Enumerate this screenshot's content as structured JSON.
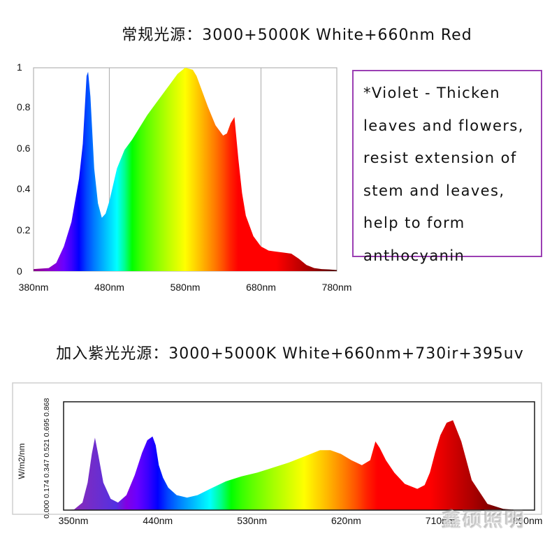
{
  "title_top": "常规光源：3000+5000K White+660nm Red",
  "title_bottom": "加入紫光光源：3000+5000K White+660nm+730ir+395uv",
  "note_lines": [
    "*Violet - Thicken",
    "leaves and flowers,",
    "resist extension of",
    "stem and leaves,",
    "help to form",
    "anthocyanin"
  ],
  "watermark": "鑫硕照明",
  "colors": {
    "note_border": "#9b3fb3",
    "grid": "#b4b4b4"
  },
  "chart_data": [
    {
      "type": "area",
      "title": "常规光源：3000+5000K White+660nm Red",
      "x_ticks": [
        "380nm",
        "480nm",
        "580nm",
        "680nm",
        "780nm"
      ],
      "y_ticks": [
        "0",
        "0.2",
        "0.4",
        "0.6",
        "0.8",
        "1"
      ],
      "xlim": [
        380,
        780
      ],
      "ylim": [
        0,
        1
      ],
      "grid": true,
      "x": [
        380,
        400,
        410,
        420,
        430,
        440,
        445,
        450,
        452,
        455,
        460,
        465,
        470,
        475,
        480,
        490,
        500,
        510,
        520,
        530,
        540,
        550,
        560,
        570,
        580,
        590,
        595,
        600,
        610,
        620,
        630,
        635,
        640,
        645,
        650,
        655,
        660,
        670,
        680,
        690,
        700,
        710,
        720,
        730,
        740,
        750,
        760,
        770,
        780
      ],
      "y": [
        0.01,
        0.015,
        0.04,
        0.12,
        0.24,
        0.45,
        0.62,
        0.95,
        0.97,
        0.85,
        0.5,
        0.33,
        0.26,
        0.28,
        0.34,
        0.5,
        0.59,
        0.64,
        0.7,
        0.76,
        0.81,
        0.86,
        0.91,
        0.96,
        0.99,
        0.98,
        0.95,
        0.9,
        0.8,
        0.71,
        0.66,
        0.67,
        0.72,
        0.75,
        0.55,
        0.38,
        0.27,
        0.17,
        0.12,
        0.1,
        0.095,
        0.09,
        0.085,
        0.06,
        0.03,
        0.015,
        0.01,
        0.008,
        0.005
      ]
    },
    {
      "type": "area",
      "title": "加入紫光光源：3000+5000K White+660nm+730ir+395uv",
      "ylabel": "W/m2/nm",
      "x_ticks": [
        "350nm",
        "440nm",
        "530nm",
        "620nm",
        "710nm",
        "800nm"
      ],
      "y_ticks": [
        "0.000",
        "0.174",
        "0.347",
        "0.521",
        "0.695",
        "0.868"
      ],
      "xlim": [
        350,
        800
      ],
      "ylim": [
        0,
        0.868
      ],
      "grid": false,
      "x": [
        350,
        360,
        368,
        373,
        377,
        380,
        383,
        388,
        395,
        402,
        410,
        418,
        425,
        430,
        435,
        438,
        441,
        445,
        450,
        458,
        468,
        478,
        490,
        505,
        520,
        535,
        550,
        565,
        580,
        595,
        605,
        615,
        625,
        635,
        643,
        648,
        652,
        658,
        666,
        676,
        688,
        695,
        700,
        705,
        710,
        716,
        722,
        730,
        740,
        755,
        770,
        785,
        800
      ],
      "y": [
        0.0,
        0.005,
        0.06,
        0.22,
        0.45,
        0.58,
        0.45,
        0.22,
        0.09,
        0.06,
        0.12,
        0.28,
        0.46,
        0.56,
        0.59,
        0.52,
        0.36,
        0.26,
        0.18,
        0.12,
        0.1,
        0.12,
        0.17,
        0.23,
        0.27,
        0.3,
        0.34,
        0.38,
        0.43,
        0.48,
        0.48,
        0.45,
        0.4,
        0.36,
        0.4,
        0.55,
        0.5,
        0.4,
        0.3,
        0.21,
        0.17,
        0.2,
        0.3,
        0.46,
        0.6,
        0.7,
        0.72,
        0.55,
        0.24,
        0.05,
        0.01,
        0.0,
        0.0
      ]
    }
  ]
}
